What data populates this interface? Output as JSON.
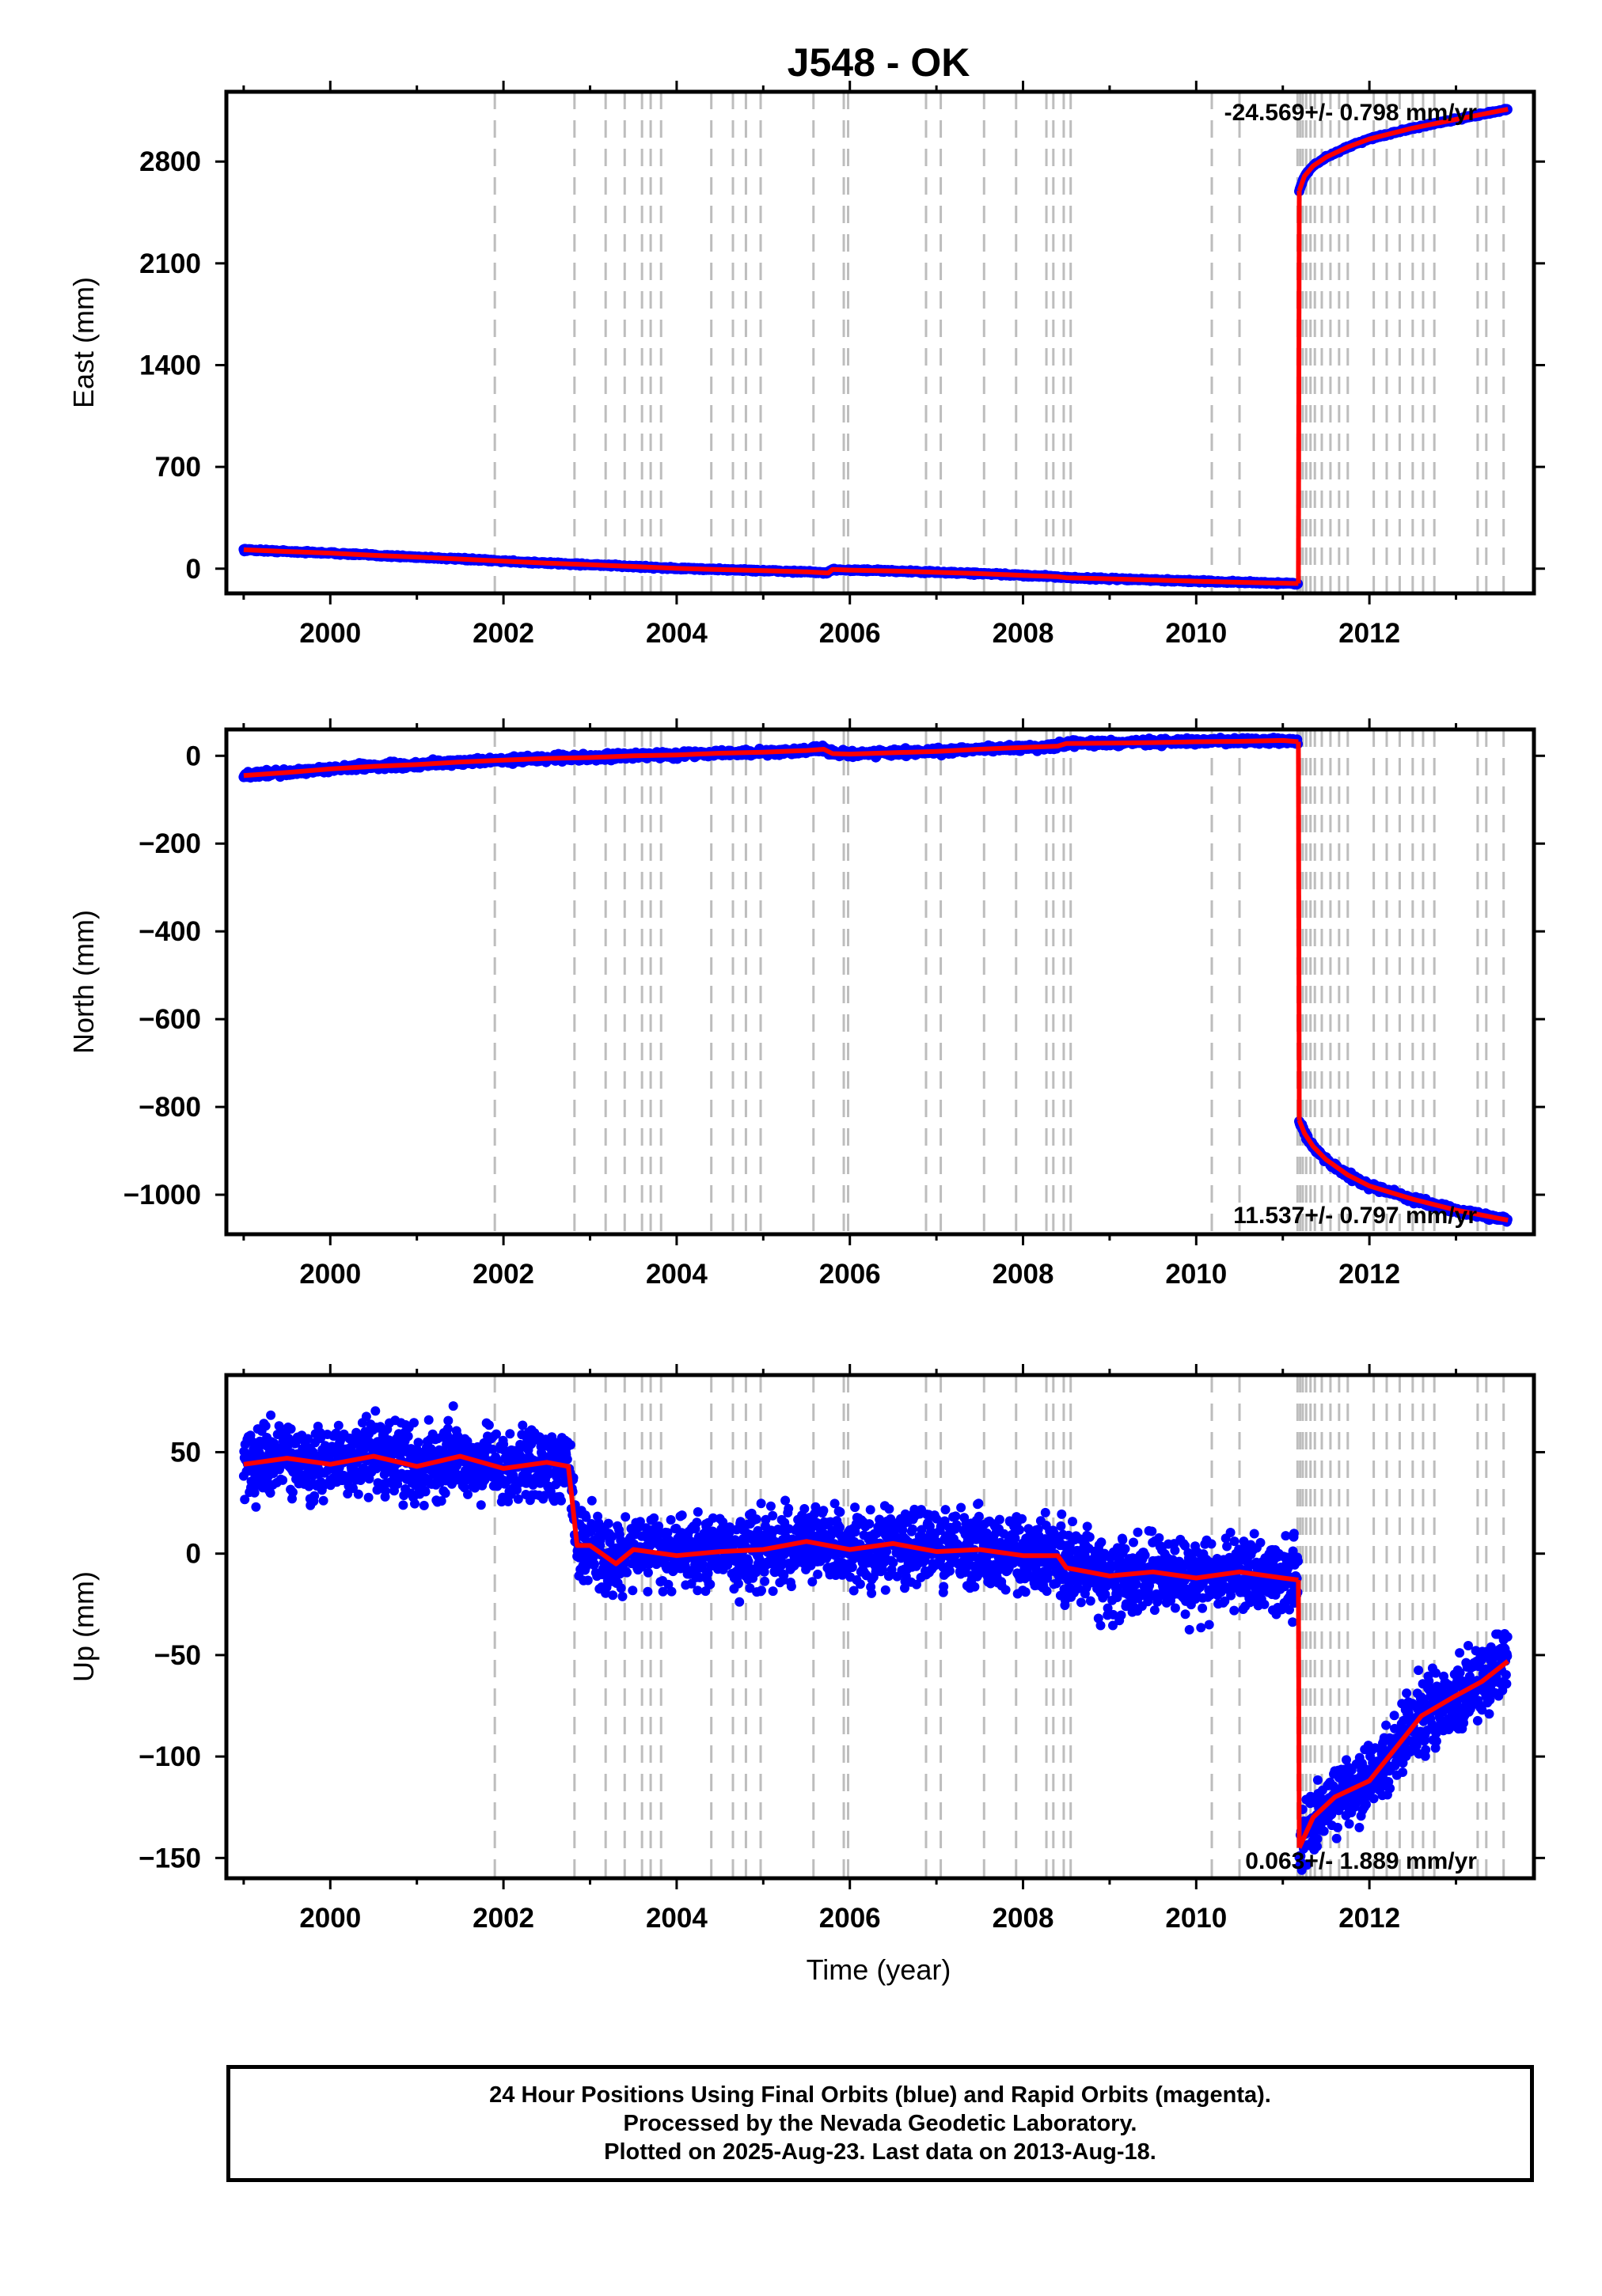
{
  "title": "J548 - OK",
  "xlabel": "Time (year)",
  "colors": {
    "final_orbits": "#0000ff",
    "model": "#ff0000",
    "grid": "#bdbdbd",
    "frame": "#000000"
  },
  "chart_data": [
    {
      "type": "scatter",
      "component": "East",
      "ylabel": "East (mm)",
      "xlim": [
        1998.8,
        2013.9
      ],
      "ylim": [
        -170,
        3280
      ],
      "xticks": [
        "2000",
        "2002",
        "2004",
        "2006",
        "2008",
        "2010",
        "2012"
      ],
      "yticks": [
        "0",
        "700",
        "1400",
        "2100",
        "2800"
      ],
      "rate_label": "-24.569+/- 0.798 mm/yr",
      "series": [
        {
          "name": "",
          "points": [
            [
              1999.0,
              130
            ],
            [
              1999.5,
              118
            ],
            [
              2000.0,
              107
            ],
            [
              2000.5,
              92
            ],
            [
              2001.0,
              80
            ],
            [
              2001.5,
              66
            ],
            [
              2002.0,
              52
            ],
            [
              2002.5,
              38
            ],
            [
              2003.0,
              27
            ],
            [
              2003.5,
              15
            ],
            [
              2004.0,
              2
            ],
            [
              2004.5,
              -6
            ],
            [
              2005.0,
              -14
            ],
            [
              2005.5,
              -22
            ],
            [
              2005.75,
              -30
            ],
            [
              2005.8,
              -5
            ],
            [
              2006.0,
              -10
            ],
            [
              2006.5,
              -16
            ],
            [
              2007.0,
              -25
            ],
            [
              2007.5,
              -34
            ],
            [
              2008.0,
              -46
            ],
            [
              2008.4,
              -55
            ],
            [
              2008.5,
              -62
            ],
            [
              2009.0,
              -70
            ],
            [
              2009.5,
              -78
            ],
            [
              2010.0,
              -86
            ],
            [
              2010.5,
              -94
            ],
            [
              2011.0,
              -100
            ],
            [
              2011.18,
              -102
            ]
          ]
        },
        {
          "name": "",
          "points": [
            [
              2011.19,
              2600
            ],
            [
              2011.25,
              2700
            ],
            [
              2011.35,
              2770
            ],
            [
              2011.5,
              2830
            ],
            [
              2011.75,
              2900
            ],
            [
              2012.0,
              2955
            ],
            [
              2012.5,
              3030
            ],
            [
              2013.0,
              3090
            ],
            [
              2013.6,
              3160
            ]
          ]
        }
      ]
    },
    {
      "type": "scatter",
      "component": "North",
      "ylabel": "North (mm)",
      "xlim": [
        1998.8,
        2013.9
      ],
      "ylim": [
        -1090,
        60
      ],
      "xticks": [
        "2000",
        "2002",
        "2004",
        "2006",
        "2008",
        "2010",
        "2012"
      ],
      "yticks": [
        "0",
        "−200",
        "−400",
        "−600",
        "−800",
        "−1000"
      ],
      "rate_label": "11.537+/- 0.797 mm/yr",
      "series": [
        {
          "name": "",
          "points": [
            [
              1999.0,
              -45
            ],
            [
              1999.5,
              -38
            ],
            [
              2000.0,
              -30
            ],
            [
              2000.5,
              -24
            ],
            [
              2001.0,
              -20
            ],
            [
              2001.5,
              -14
            ],
            [
              2002.0,
              -10
            ],
            [
              2002.5,
              -6
            ],
            [
              2003.0,
              -4
            ],
            [
              2003.5,
              0
            ],
            [
              2004.0,
              2
            ],
            [
              2004.5,
              6
            ],
            [
              2005.0,
              8
            ],
            [
              2005.5,
              12
            ],
            [
              2005.7,
              15
            ],
            [
              2005.8,
              5
            ],
            [
              2006.0,
              4
            ],
            [
              2006.5,
              7
            ],
            [
              2007.0,
              10
            ],
            [
              2007.5,
              15
            ],
            [
              2008.0,
              19
            ],
            [
              2008.4,
              22
            ],
            [
              2008.5,
              28
            ],
            [
              2009.0,
              29
            ],
            [
              2009.5,
              30
            ],
            [
              2010.0,
              32
            ],
            [
              2010.5,
              33
            ],
            [
              2011.0,
              35
            ],
            [
              2011.18,
              32
            ]
          ]
        },
        {
          "name": "",
          "points": [
            [
              2011.19,
              -830
            ],
            [
              2011.25,
              -860
            ],
            [
              2011.35,
              -890
            ],
            [
              2011.5,
              -920
            ],
            [
              2011.75,
              -955
            ],
            [
              2012.0,
              -980
            ],
            [
              2012.5,
              -1010
            ],
            [
              2013.0,
              -1035
            ],
            [
              2013.6,
              -1058
            ]
          ]
        }
      ]
    },
    {
      "type": "scatter",
      "component": "Up",
      "ylabel": "Up (mm)",
      "xlim": [
        1998.8,
        2013.9
      ],
      "ylim": [
        -160,
        88
      ],
      "xticks": [
        "2000",
        "2002",
        "2004",
        "2006",
        "2008",
        "2010",
        "2012"
      ],
      "yticks": [
        "50",
        "0",
        "−50",
        "−100",
        "−150"
      ],
      "rate_label": "0.063+/- 1.889 mm/yr",
      "series": [
        {
          "name": "",
          "points": [
            [
              1999.0,
              44
            ],
            [
              1999.5,
              47
            ],
            [
              2000.0,
              44
            ],
            [
              2000.5,
              48
            ],
            [
              2001.0,
              43
            ],
            [
              2001.5,
              48
            ],
            [
              2002.0,
              42
            ],
            [
              2002.5,
              45
            ],
            [
              2002.75,
              43
            ],
            [
              2002.85,
              4
            ],
            [
              2003.0,
              4
            ],
            [
              2003.3,
              -5
            ],
            [
              2003.5,
              2
            ],
            [
              2004.0,
              -1
            ],
            [
              2004.5,
              1
            ],
            [
              2005.0,
              2
            ],
            [
              2005.5,
              6
            ],
            [
              2006.0,
              2
            ],
            [
              2006.5,
              5
            ],
            [
              2007.0,
              1
            ],
            [
              2007.5,
              2
            ],
            [
              2008.0,
              -1
            ],
            [
              2008.4,
              -1
            ],
            [
              2008.5,
              -7
            ],
            [
              2009.0,
              -11
            ],
            [
              2009.5,
              -9
            ],
            [
              2010.0,
              -12
            ],
            [
              2010.5,
              -9
            ],
            [
              2011.0,
              -12
            ],
            [
              2011.18,
              -13
            ]
          ]
        },
        {
          "name": "",
          "points": [
            [
              2011.19,
              -145
            ],
            [
              2011.35,
              -130
            ],
            [
              2011.6,
              -120
            ],
            [
              2012.0,
              -112
            ],
            [
              2012.3,
              -96
            ],
            [
              2012.6,
              -80
            ],
            [
              2013.0,
              -70
            ],
            [
              2013.3,
              -63
            ],
            [
              2013.6,
              -53
            ]
          ]
        }
      ]
    }
  ],
  "vertical_lines": [
    2001.9,
    2002.82,
    2003.18,
    2003.4,
    2003.6,
    2003.7,
    2003.82,
    2004.4,
    2004.65,
    2004.8,
    2004.97,
    2005.58,
    2005.93,
    2005.98,
    2006.88,
    2007.05,
    2007.55,
    2007.92,
    2008.27,
    2008.35,
    2008.47,
    2008.55,
    2010.18,
    2010.5,
    2011.17,
    2011.2,
    2011.23,
    2011.27,
    2011.32,
    2011.37,
    2011.45,
    2011.55,
    2011.65,
    2011.75,
    2012.05,
    2012.2,
    2012.35,
    2012.5,
    2012.62,
    2012.75,
    2013.25,
    2013.35,
    2013.55
  ],
  "footer": {
    "line1": "24 Hour Positions Using Final Orbits (blue) and Rapid Orbits (magenta).",
    "line2": "Processed by the Nevada Geodetic Laboratory.",
    "line3": "Plotted on 2025-Aug-23. Last data on 2013-Aug-18."
  }
}
